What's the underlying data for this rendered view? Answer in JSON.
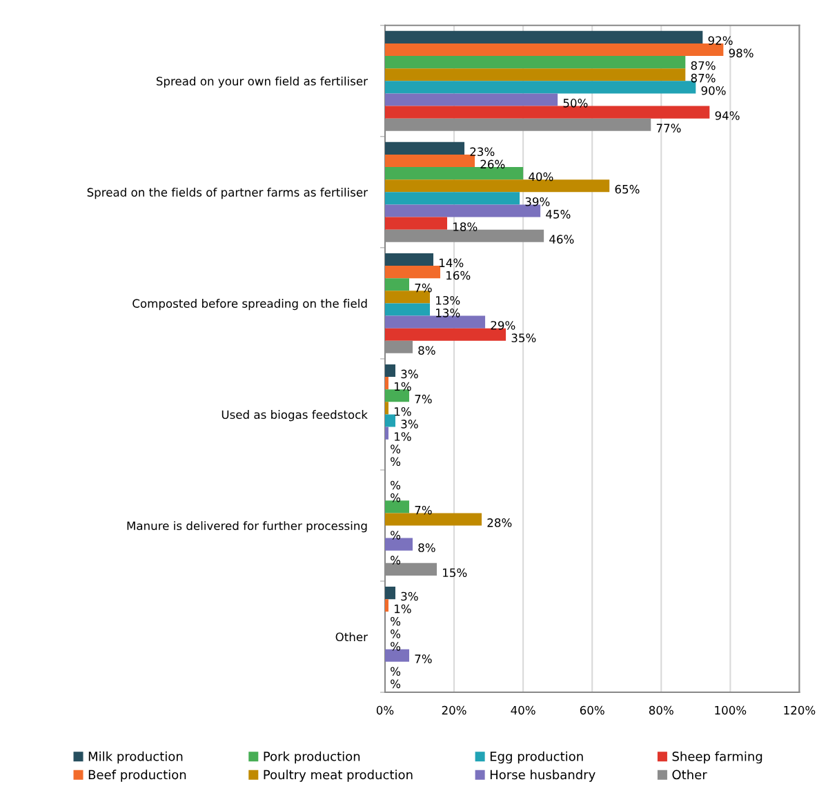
{
  "chart_data": {
    "type": "bar",
    "orientation": "horizontal",
    "categories": [
      "Spread on your own field as fertiliser",
      "Spread on the fields of partner farms as fertiliser",
      "Composted before spreading on the field",
      "Used as biogas feedstock",
      "Manure is delivered for further processing",
      "Other"
    ],
    "series": [
      {
        "name": "Milk production",
        "color": "#264e5e",
        "values": [
          92,
          23,
          14,
          3,
          null,
          3
        ],
        "value_labels": [
          "92%",
          "23%",
          "14%",
          "3%",
          "%",
          "3%"
        ]
      },
      {
        "name": "Beef production",
        "color": "#f26b2a",
        "values": [
          98,
          26,
          16,
          1,
          null,
          1
        ],
        "value_labels": [
          "98%",
          "26%",
          "16%",
          "1%",
          "%",
          "1%"
        ]
      },
      {
        "name": "Pork production",
        "color": "#47ae55",
        "values": [
          87,
          40,
          7,
          7,
          7,
          null
        ],
        "value_labels": [
          "87%",
          "40%",
          "7%",
          "7%",
          "7%",
          "%"
        ]
      },
      {
        "name": "Poultry meat production",
        "color": "#c08a00",
        "values": [
          87,
          65,
          13,
          1,
          28,
          null
        ],
        "value_labels": [
          "87%",
          "65%",
          "13%",
          "1%",
          "28%",
          "%"
        ]
      },
      {
        "name": "Egg production",
        "color": "#21a3b5",
        "values": [
          90,
          39,
          13,
          3,
          null,
          null
        ],
        "value_labels": [
          "90%",
          "39%",
          "13%",
          "3%",
          "%",
          "%"
        ]
      },
      {
        "name": "Horse husbandry",
        "color": "#7b72be",
        "values": [
          50,
          45,
          29,
          1,
          8,
          7
        ],
        "value_labels": [
          "50%",
          "45%",
          "29%",
          "1%",
          "8%",
          "7%"
        ]
      },
      {
        "name": "Sheep farming",
        "color": "#e0362c",
        "values": [
          94,
          18,
          35,
          null,
          null,
          null
        ],
        "value_labels": [
          "94%",
          "18%",
          "35%",
          "%",
          "%",
          "%"
        ]
      },
      {
        "name": "Other",
        "color": "#8c8c8c",
        "values": [
          77,
          46,
          8,
          null,
          15,
          null
        ],
        "value_labels": [
          "77%",
          "46%",
          "8%",
          "%",
          "15%",
          "%"
        ]
      }
    ],
    "xlim": [
      0,
      120
    ],
    "xticks": [
      {
        "value": 0,
        "label": "0%"
      },
      {
        "value": 20,
        "label": "20%"
      },
      {
        "value": 40,
        "label": "40%"
      },
      {
        "value": 60,
        "label": "60%"
      },
      {
        "value": 80,
        "label": "80%"
      },
      {
        "value": 100,
        "label": "100%"
      },
      {
        "value": 120,
        "label": "120%"
      }
    ],
    "grid": "x",
    "legend": "bottom"
  }
}
